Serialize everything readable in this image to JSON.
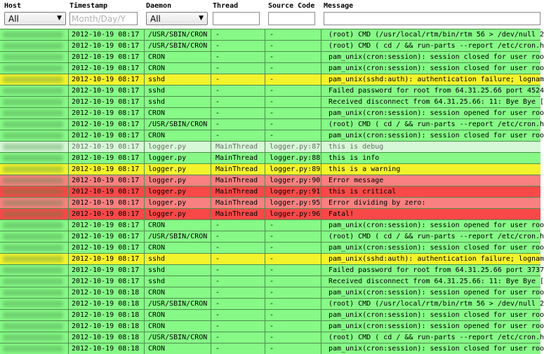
{
  "header": {
    "host": {
      "label": "Host",
      "value": "All"
    },
    "timestamp": {
      "label": "Timestamp",
      "placeholder": "Month/Day/Y"
    },
    "daemon": {
      "label": "Daemon",
      "value": "All"
    },
    "thread": {
      "label": "Thread",
      "value": ""
    },
    "source_code": {
      "label": "Source Code",
      "value": ""
    },
    "message": {
      "label": "Message",
      "value": ""
    }
  },
  "colors": {
    "normal": "#86f986",
    "warning": "#f3f32b",
    "debug": "#d6f8d6",
    "error": "#f98080",
    "critical": "#f94848"
  },
  "rows": [
    {
      "level": "normal",
      "ts": "2012-10-19 08:17",
      "daemon": "/USR/SBIN/CRON",
      "thread": "-",
      "source": "-",
      "message": "(root) CMD (/usr/local/rtm/bin/rtm 56 > /dev/null 2"
    },
    {
      "level": "normal",
      "ts": "2012-10-19 08:17",
      "daemon": "/USR/SBIN/CRON",
      "thread": "-",
      "source": "-",
      "message": "(root) CMD ( cd / && run-parts --report /etc/cron.h"
    },
    {
      "level": "normal",
      "ts": "2012-10-19 08:17",
      "daemon": "CRON",
      "thread": "-",
      "source": "-",
      "message": "pam_unix(cron:session): session closed for user roo"
    },
    {
      "level": "normal",
      "ts": "2012-10-19 08:17",
      "daemon": "CRON",
      "thread": "-",
      "source": "-",
      "message": "pam_unix(cron:session): session closed for user roo"
    },
    {
      "level": "warning",
      "ts": "2012-10-19 08:17",
      "daemon": "sshd",
      "thread": "-",
      "source": "-",
      "message": "pam_unix(sshd:auth): authentication failure; lognam"
    },
    {
      "level": "normal",
      "ts": "2012-10-19 08:17",
      "daemon": "sshd",
      "thread": "-",
      "source": "-",
      "message": "Failed password for root from 64.31.25.66 port 4524"
    },
    {
      "level": "normal",
      "ts": "2012-10-19 08:17",
      "daemon": "sshd",
      "thread": "-",
      "source": "-",
      "message": "Received disconnect from 64.31.25.66: 11: Bye Bye ["
    },
    {
      "level": "normal",
      "ts": "2012-10-19 08:17",
      "daemon": "CRON",
      "thread": "-",
      "source": "-",
      "message": "pam_unix(cron:session): session opened for user roo"
    },
    {
      "level": "normal",
      "ts": "2012-10-19 08:17",
      "daemon": "/USR/SBIN/CRON",
      "thread": "-",
      "source": "-",
      "message": "(root) CMD ( cd / && run-parts --report /etc/cron.h"
    },
    {
      "level": "normal",
      "ts": "2012-10-19 08:17",
      "daemon": "CRON",
      "thread": "-",
      "source": "-",
      "message": "pam_unix(cron:session): session closed for user roo"
    },
    {
      "level": "debug",
      "ts": "2012-10-19 08:17",
      "daemon": "logger.py",
      "thread": "MainThread",
      "source": "logger.py:87",
      "message": "this is debug"
    },
    {
      "level": "normal",
      "ts": "2012-10-19 08:17",
      "daemon": "logger.py",
      "thread": "MainThread",
      "source": "logger.py:88",
      "message": "this is info"
    },
    {
      "level": "warning",
      "ts": "2012-10-19 08:17",
      "daemon": "logger.py",
      "thread": "MainThread",
      "source": "logger.py:89",
      "message": "this is a warning"
    },
    {
      "level": "error",
      "ts": "2012-10-19 08:17",
      "daemon": "logger.py",
      "thread": "MainThread",
      "source": "logger.py:90",
      "message": "Error message"
    },
    {
      "level": "critical",
      "ts": "2012-10-19 08:17",
      "daemon": "logger.py",
      "thread": "MainThread",
      "source": "logger.py:91",
      "message": "this is critical"
    },
    {
      "level": "error",
      "ts": "2012-10-19 08:17",
      "daemon": "logger.py",
      "thread": "MainThread",
      "source": "logger.py:95",
      "message": "Error dividing by zero:"
    },
    {
      "level": "critical",
      "ts": "2012-10-19 08:17",
      "daemon": "logger.py",
      "thread": "MainThread",
      "source": "logger.py:96",
      "message": "Fatal!"
    },
    {
      "level": "normal",
      "ts": "2012-10-19 08:17",
      "daemon": "CRON",
      "thread": "-",
      "source": "-",
      "message": "pam_unix(cron:session): session opened for user roo"
    },
    {
      "level": "normal",
      "ts": "2012-10-19 08:17",
      "daemon": "/USR/SBIN/CRON",
      "thread": "-",
      "source": "-",
      "message": "(root) CMD ( cd / && run-parts --report /etc/cron.h"
    },
    {
      "level": "normal",
      "ts": "2012-10-19 08:17",
      "daemon": "CRON",
      "thread": "-",
      "source": "-",
      "message": "pam_unix(cron:session): session closed for user roo"
    },
    {
      "level": "warning",
      "ts": "2012-10-19 08:17",
      "daemon": "sshd",
      "thread": "-",
      "source": "-",
      "message": "pam_unix(sshd:auth): authentication failure; lognam"
    },
    {
      "level": "normal",
      "ts": "2012-10-19 08:17",
      "daemon": "sshd",
      "thread": "-",
      "source": "-",
      "message": "Failed password for root from 64.31.25.66 port 3737"
    },
    {
      "level": "normal",
      "ts": "2012-10-19 08:17",
      "daemon": "sshd",
      "thread": "-",
      "source": "-",
      "message": "Received disconnect from 64.31.25.66: 11: Bye Bye ["
    },
    {
      "level": "normal",
      "ts": "2012-10-19 08:18",
      "daemon": "CRON",
      "thread": "-",
      "source": "-",
      "message": "pam_unix(cron:session): session opened for user roo"
    },
    {
      "level": "normal",
      "ts": "2012-10-19 08:18",
      "daemon": "/USR/SBIN/CRON",
      "thread": "-",
      "source": "-",
      "message": "(root) CMD (/usr/local/rtm/bin/rtm 56 > /dev/null 2"
    },
    {
      "level": "normal",
      "ts": "2012-10-19 08:18",
      "daemon": "CRON",
      "thread": "-",
      "source": "-",
      "message": "pam_unix(cron:session): session closed for user roo"
    },
    {
      "level": "normal",
      "ts": "2012-10-19 08:18",
      "daemon": "CRON",
      "thread": "-",
      "source": "-",
      "message": "pam_unix(cron:session): session opened for user roo"
    },
    {
      "level": "normal",
      "ts": "2012-10-19 08:18",
      "daemon": "/USR/SBIN/CRON",
      "thread": "-",
      "source": "-",
      "message": "(root) CMD ( cd / && run-parts --report /etc/cron.h"
    },
    {
      "level": "normal",
      "ts": "2012-10-19 08:18",
      "daemon": "CRON",
      "thread": "-",
      "source": "-",
      "message": "pam_unix(cron:session): session closed for user roo"
    }
  ]
}
